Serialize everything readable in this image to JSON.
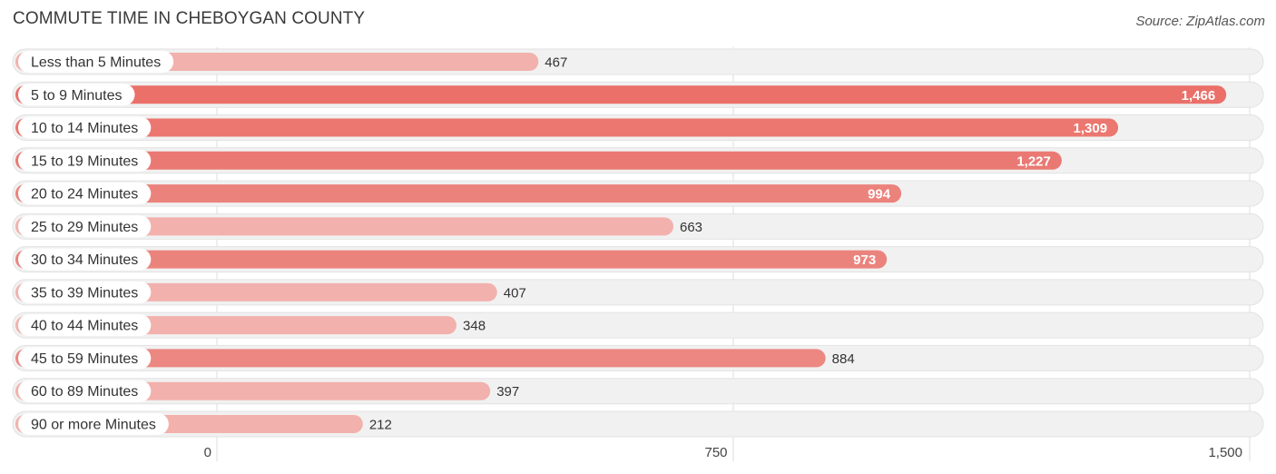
{
  "chart_data": {
    "type": "bar",
    "orientation": "horizontal",
    "title": "COMMUTE TIME IN CHEBOYGAN COUNTY",
    "source": "Source: ZipAtlas.com",
    "categories": [
      "Less than 5 Minutes",
      "5 to 9 Minutes",
      "10 to 14 Minutes",
      "15 to 19 Minutes",
      "20 to 24 Minutes",
      "25 to 29 Minutes",
      "30 to 34 Minutes",
      "35 to 39 Minutes",
      "40 to 44 Minutes",
      "45 to 59 Minutes",
      "60 to 89 Minutes",
      "90 or more Minutes"
    ],
    "values": [
      467,
      1466,
      1309,
      1227,
      994,
      663,
      973,
      407,
      348,
      884,
      397,
      212
    ],
    "value_labels": [
      "467",
      "1,466",
      "1,309",
      "1,227",
      "994",
      "663",
      "973",
      "407",
      "348",
      "884",
      "397",
      "212"
    ],
    "xlim": [
      0,
      1500
    ],
    "ticks": [
      0,
      750,
      1500
    ],
    "tick_labels": [
      "0",
      "750",
      "1,500"
    ],
    "grid": true,
    "colors": {
      "bar_strong": "#ea7069",
      "bar_light": "#f2b1ad"
    }
  }
}
